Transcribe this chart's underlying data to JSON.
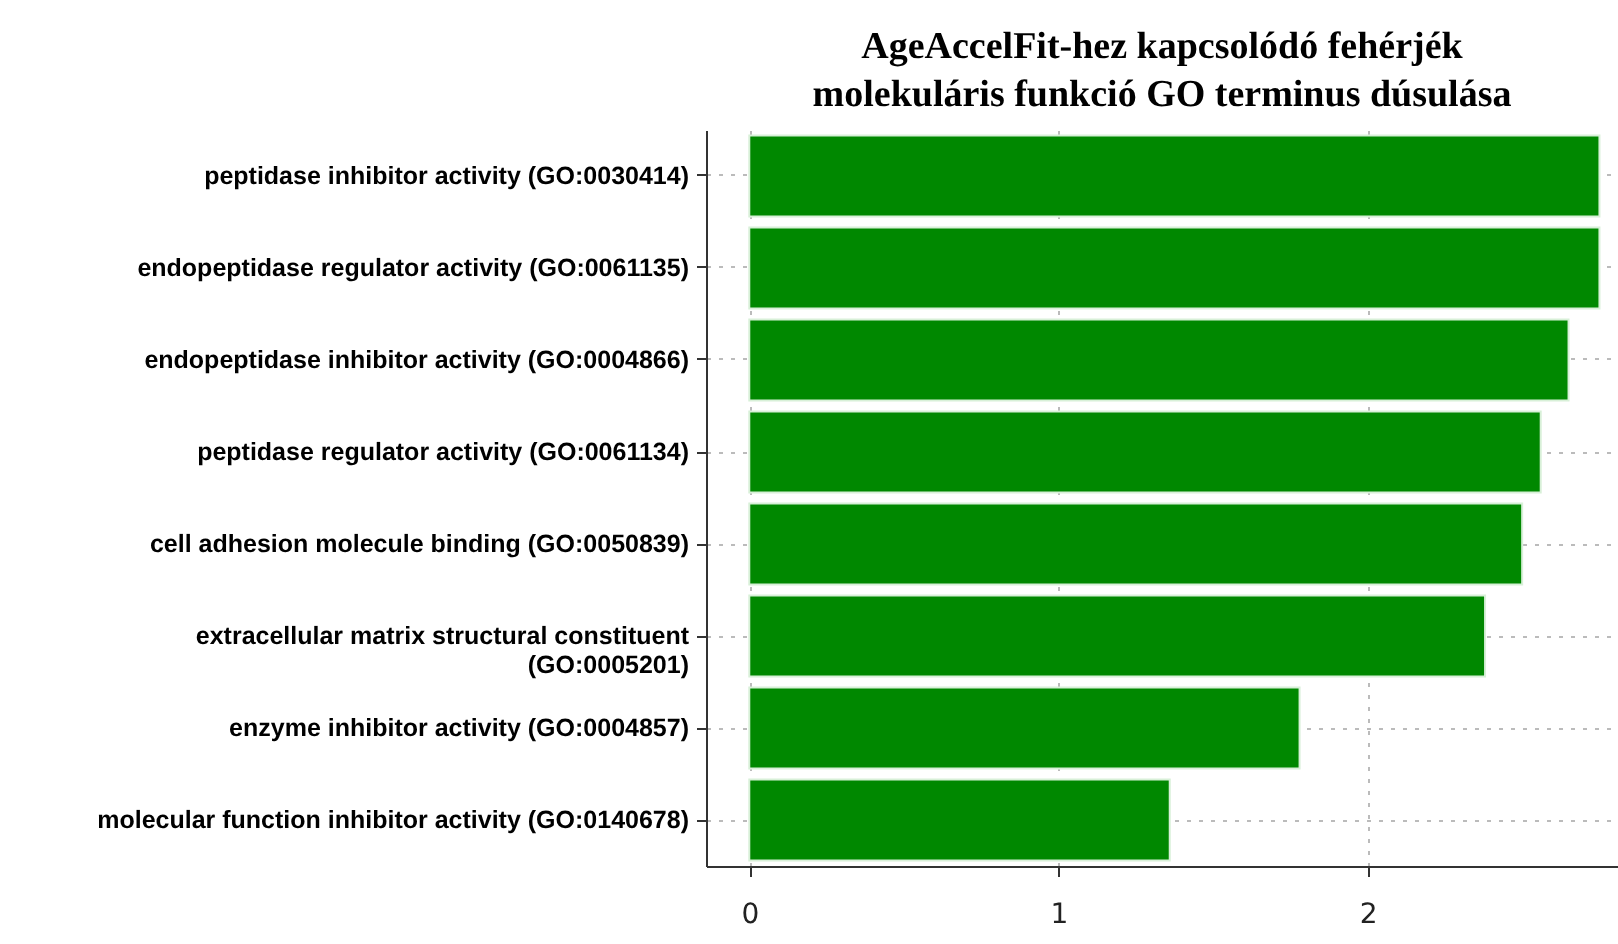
{
  "chart_data": {
    "type": "bar",
    "orientation": "horizontal",
    "title": "AgeAccelFit-hez kapcsolódó fehérjék\nmolekuláris funkció GO terminus dúsulása",
    "categories": [
      "peptidase inhibitor activity (GO:0030414)",
      "endopeptidase regulator activity (GO:0061135)",
      "endopeptidase inhibitor activity (GO:0004866)",
      "peptidase regulator activity (GO:0061134)",
      "cell adhesion molecule binding (GO:0050839)",
      "extracellular matrix structural constituent (GO:0005201)",
      "enzyme inhibitor activity (GO:0004857)",
      "molecular function inhibitor activity (GO:0140678)"
    ],
    "values": [
      2.75,
      2.75,
      2.65,
      2.56,
      2.5,
      2.38,
      1.78,
      1.36
    ],
    "color": "#008800",
    "xlim": [
      -0.14,
      2.81
    ],
    "xticks": [
      0,
      1,
      2
    ],
    "grid": true
  }
}
